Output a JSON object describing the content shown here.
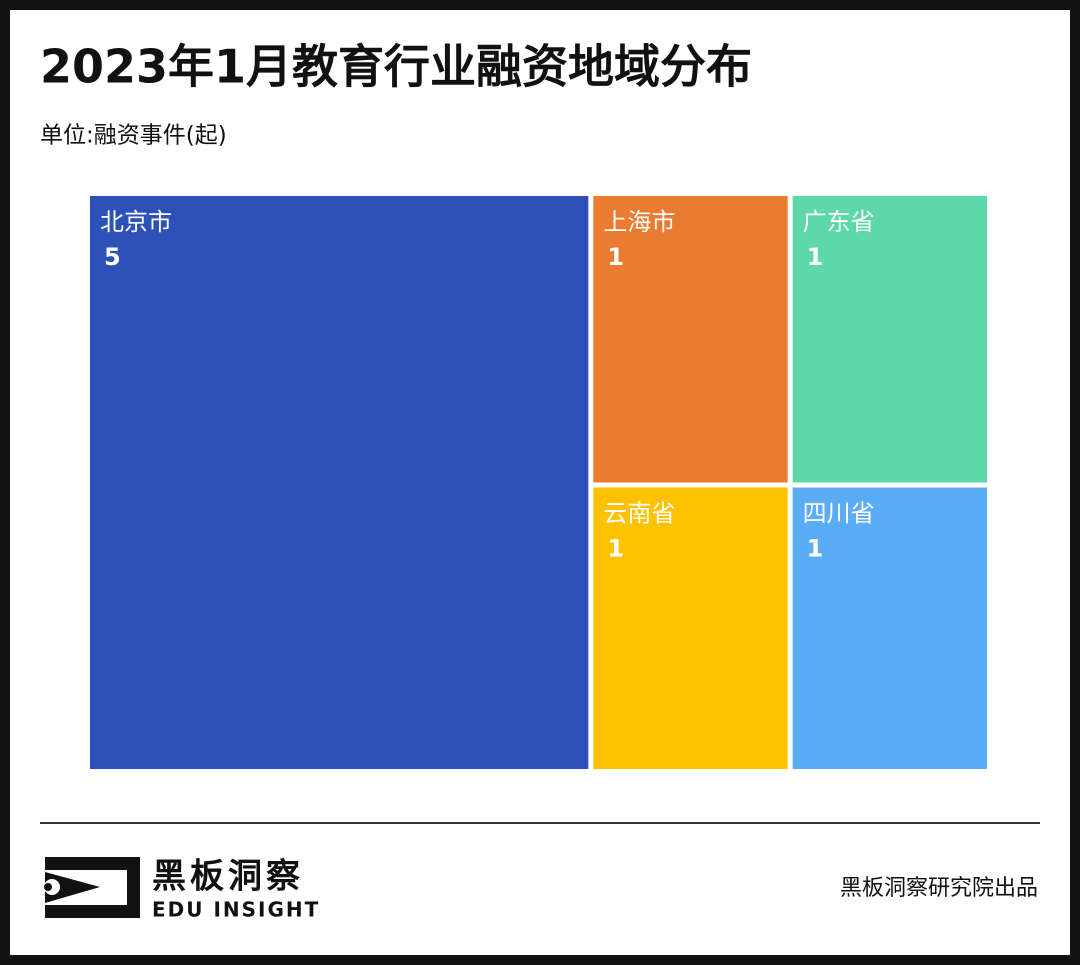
{
  "chart_data": {
    "type": "treemap",
    "title": "2023年1月教育行业融资地域分布",
    "subtitle": "单位:融资事件(起)",
    "categories": [
      "北京市",
      "上海市",
      "广东省",
      "云南省",
      "四川省"
    ],
    "values": [
      5,
      1,
      1,
      1,
      1
    ],
    "colors": [
      "#2c52b9",
      "#eb7b31",
      "#5fd8a9",
      "#fdc100",
      "#5aacf4"
    ]
  },
  "footer": {
    "logo_title": "黑板洞察",
    "logo_subtitle": "EDU INSIGHT",
    "credit": "黑板洞察研究院出品"
  }
}
